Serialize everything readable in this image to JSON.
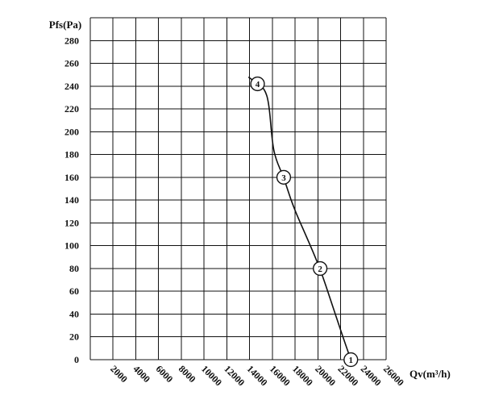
{
  "chart_data": {
    "type": "line",
    "title": "",
    "xlabel": "Qv(m³/h)",
    "ylabel": "Pfs(Pa)",
    "xlim": [
      0,
      26000
    ],
    "ylim": [
      0,
      300
    ],
    "grid": true,
    "legend": "none",
    "x_ticks": [
      "2000",
      "4000",
      "6000",
      "8000",
      "10000",
      "12000",
      "14000",
      "16000",
      "18000",
      "20000",
      "22000",
      "24000",
      "26000"
    ],
    "y_ticks": [
      "0",
      "20",
      "40",
      "60",
      "80",
      "100",
      "120",
      "140",
      "160",
      "180",
      "200",
      "220",
      "240",
      "260",
      "280"
    ],
    "series": [
      {
        "points": [
          {
            "x": 13900,
            "y": 248
          },
          {
            "x": 14700,
            "y": 242
          },
          {
            "x": 15300,
            "y": 238
          },
          {
            "x": 15700,
            "y": 226
          },
          {
            "x": 16000,
            "y": 190
          },
          {
            "x": 16300,
            "y": 176
          },
          {
            "x": 17000,
            "y": 160
          },
          {
            "x": 17800,
            "y": 135
          },
          {
            "x": 19000,
            "y": 108
          },
          {
            "x": 20200,
            "y": 80
          },
          {
            "x": 21200,
            "y": 50
          },
          {
            "x": 22200,
            "y": 20
          },
          {
            "x": 22900,
            "y": 0
          }
        ]
      }
    ],
    "operating_points": [
      {
        "label": "1",
        "x": 22900,
        "y": 0
      },
      {
        "label": "2",
        "x": 20200,
        "y": 80
      },
      {
        "label": "3",
        "x": 17000,
        "y": 160
      },
      {
        "label": "4",
        "x": 14700,
        "y": 242
      }
    ],
    "colors": {
      "ink": "#111111",
      "background": "#ffffff"
    }
  }
}
